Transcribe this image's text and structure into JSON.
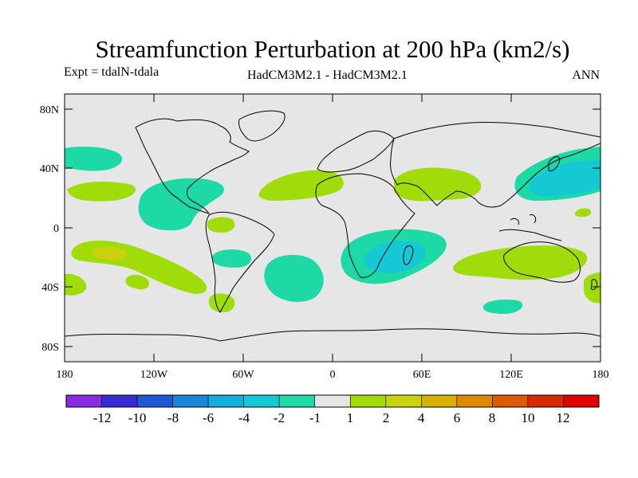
{
  "title": "Streamfunction Perturbation at 200 hPa (km2/s)",
  "left_subtitle": "Expt = tdalN-tdala",
  "center_subtitle": "HadCM3M2.1 - HadCM3M2.1",
  "right_subtitle": "ANN",
  "lat_labels": [
    "80N",
    "40N",
    "0",
    "40S",
    "80S"
  ],
  "lon_labels": [
    "180",
    "120W",
    "60W",
    "0",
    "60E",
    "120E",
    "180"
  ],
  "colorbar": {
    "labels": [
      "-12",
      "-10",
      "-8",
      "-6",
      "-4",
      "-2",
      "-1",
      "1",
      "2",
      "4",
      "6",
      "8",
      "10",
      "12"
    ],
    "colors": [
      "#8a2be2",
      "#3a2ad6",
      "#1f58d6",
      "#1a86d8",
      "#12aedc",
      "#14c8d4",
      "#1dd9a6",
      "#e6e6e6",
      "#9fdc0a",
      "#c9d20a",
      "#d8b000",
      "#dd8a00",
      "#dc5a00",
      "#d82a00",
      "#e00000"
    ]
  },
  "colors": {
    "background": "#e6e6e6",
    "neg1": "#1dd9a6",
    "neg2": "#14c8d4",
    "pos1": "#9fdc0a",
    "pos2": "#c9d20a"
  }
}
